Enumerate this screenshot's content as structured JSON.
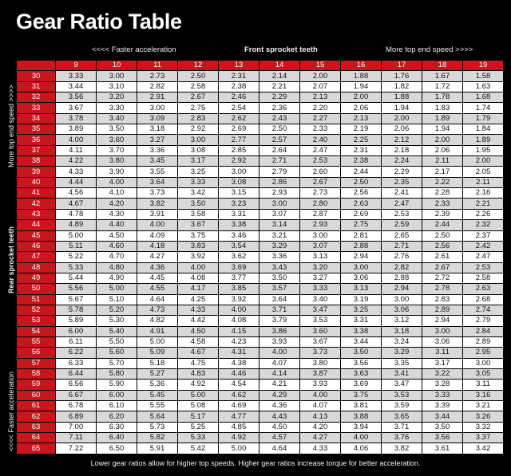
{
  "title": "Gear Ratio Table",
  "top_labels": {
    "left": "<<<< Faster acceleration",
    "center": "Front sprocket teeth",
    "right": "More top end speed >>>>"
  },
  "side_labels": {
    "top": "More top end speed >>>>",
    "center": "Rear sprocket teeth",
    "bottom": "<<<< Faster acceleration"
  },
  "footer": "Lower gear ratios allow for higher top speeds. Higher gear ratios increase torque for better acceleration.",
  "colors": {
    "header_red": "#c8161d",
    "row_gray": "#d9d9d9",
    "row_white": "#ffffff",
    "background": "#000000"
  },
  "table": {
    "front_teeth": [
      "9",
      "10",
      "11",
      "12",
      "13",
      "14",
      "15",
      "16",
      "17",
      "18",
      "19"
    ],
    "rows": [
      {
        "rear": "30",
        "values": [
          "3.33",
          "3.00",
          "2.73",
          "2.50",
          "2.31",
          "2.14",
          "2.00",
          "1.88",
          "1.76",
          "1.67",
          "1.58"
        ]
      },
      {
        "rear": "31",
        "values": [
          "3.44",
          "3.10",
          "2.82",
          "2.58",
          "2.38",
          "2.21",
          "2.07",
          "1.94",
          "1.82",
          "1.72",
          "1.63"
        ]
      },
      {
        "rear": "32",
        "values": [
          "3.56",
          "3.20",
          "2.91",
          "2.67",
          "2.46",
          "2.29",
          "2.13",
          "2.00",
          "1.88",
          "1.78",
          "1.68"
        ]
      },
      {
        "rear": "33",
        "values": [
          "3.67",
          "3.30",
          "3.00",
          "2.75",
          "2.54",
          "2.36",
          "2.20",
          "2.06",
          "1.94",
          "1.83",
          "1.74"
        ]
      },
      {
        "rear": "34",
        "values": [
          "3.78",
          "3.40",
          "3.09",
          "2.83",
          "2.62",
          "2.43",
          "2.27",
          "2.13",
          "2.00",
          "1.89",
          "1.79"
        ]
      },
      {
        "rear": "35",
        "values": [
          "3.89",
          "3.50",
          "3.18",
          "2.92",
          "2.69",
          "2.50",
          "2.33",
          "2.19",
          "2.06",
          "1.94",
          "1.84"
        ]
      },
      {
        "rear": "36",
        "values": [
          "4.00",
          "3.60",
          "3.27",
          "3.00",
          "2.77",
          "2.57",
          "2.40",
          "2.25",
          "2.12",
          "2.00",
          "1.89"
        ]
      },
      {
        "rear": "37",
        "values": [
          "4.11",
          "3.70",
          "3.36",
          "3.08",
          "2.85",
          "2.64",
          "2.47",
          "2.31",
          "2.18",
          "2.06",
          "1.95"
        ]
      },
      {
        "rear": "38",
        "values": [
          "4.22",
          "3.80",
          "3.45",
          "3.17",
          "2.92",
          "2.71",
          "2.53",
          "2.38",
          "2.24",
          "2.11",
          "2.00"
        ]
      },
      {
        "rear": "39",
        "values": [
          "4.33",
          "3.90",
          "3.55",
          "3.25",
          "3.00",
          "2.79",
          "2.60",
          "2.44",
          "2.29",
          "2.17",
          "2.05"
        ]
      },
      {
        "rear": "40",
        "values": [
          "4.44",
          "4.00",
          "3.64",
          "3.33",
          "3.08",
          "2.86",
          "2.67",
          "2.50",
          "2.35",
          "2.22",
          "2.11"
        ]
      },
      {
        "rear": "41",
        "values": [
          "4.56",
          "4.10",
          "3.73",
          "3.42",
          "3.15",
          "2.93",
          "2.73",
          "2.56",
          "2.41",
          "2.28",
          "2.16"
        ]
      },
      {
        "rear": "42",
        "values": [
          "4.67",
          "4.20",
          "3.82",
          "3.50",
          "3.23",
          "3.00",
          "2.80",
          "2.63",
          "2.47",
          "2.33",
          "2.21"
        ]
      },
      {
        "rear": "43",
        "values": [
          "4.78",
          "4.30",
          "3.91",
          "3.58",
          "3.31",
          "3.07",
          "2.87",
          "2.69",
          "2.53",
          "2.39",
          "2.26"
        ]
      },
      {
        "rear": "44",
        "values": [
          "4.89",
          "4.40",
          "4.00",
          "3.67",
          "3.38",
          "3.14",
          "2.93",
          "2.75",
          "2.59",
          "2.44",
          "2.32"
        ]
      },
      {
        "rear": "45",
        "values": [
          "5.00",
          "4.50",
          "4.09",
          "3.75",
          "3.46",
          "3.21",
          "3.00",
          "2.81",
          "2.65",
          "2.50",
          "2.37"
        ]
      },
      {
        "rear": "46",
        "values": [
          "5.11",
          "4.60",
          "4.18",
          "3.83",
          "3.54",
          "3.29",
          "3.07",
          "2.88",
          "2.71",
          "2.56",
          "2.42"
        ]
      },
      {
        "rear": "47",
        "values": [
          "5.22",
          "4.70",
          "4.27",
          "3.92",
          "3.62",
          "3.36",
          "3.13",
          "2.94",
          "2.76",
          "2.61",
          "2.47"
        ]
      },
      {
        "rear": "48",
        "values": [
          "5.33",
          "4.80",
          "4.36",
          "4.00",
          "3.69",
          "3.43",
          "3.20",
          "3.00",
          "2.82",
          "2.67",
          "2.53"
        ]
      },
      {
        "rear": "49",
        "values": [
          "5.44",
          "4.90",
          "4.45",
          "4.08",
          "3.77",
          "3.50",
          "3.27",
          "3.06",
          "2.88",
          "2.72",
          "2.58"
        ]
      },
      {
        "rear": "50",
        "values": [
          "5.56",
          "5.00",
          "4.55",
          "4.17",
          "3.85",
          "3.57",
          "3.33",
          "3.13",
          "2.94",
          "2.78",
          "2.63"
        ]
      },
      {
        "rear": "51",
        "values": [
          "5.67",
          "5.10",
          "4.64",
          "4.25",
          "3.92",
          "3.64",
          "3.40",
          "3.19",
          "3.00",
          "2.83",
          "2.68"
        ]
      },
      {
        "rear": "52",
        "values": [
          "5.78",
          "5.20",
          "4.73",
          "4.33",
          "4.00",
          "3.71",
          "3.47",
          "3.25",
          "3.06",
          "2.89",
          "2.74"
        ]
      },
      {
        "rear": "53",
        "values": [
          "5.89",
          "5.30",
          "4.82",
          "4.42",
          "4.08",
          "3.79",
          "3.53",
          "3.31",
          "3.12",
          "2.94",
          "2.79"
        ]
      },
      {
        "rear": "54",
        "values": [
          "6.00",
          "5.40",
          "4.91",
          "4.50",
          "4.15",
          "3.86",
          "3.60",
          "3.38",
          "3.18",
          "3.00",
          "2.84"
        ]
      },
      {
        "rear": "55",
        "values": [
          "6.11",
          "5.50",
          "5.00",
          "4.58",
          "4.23",
          "3.93",
          "3.67",
          "3.44",
          "3.24",
          "3.06",
          "2.89"
        ]
      },
      {
        "rear": "56",
        "values": [
          "6.22",
          "5.60",
          "5.09",
          "4.67",
          "4.31",
          "4.00",
          "3.73",
          "3.50",
          "3.29",
          "3.11",
          "2.95"
        ]
      },
      {
        "rear": "57",
        "values": [
          "6.33",
          "5.70",
          "5.18",
          "4.75",
          "4.38",
          "4.07",
          "3.80",
          "3.56",
          "3.35",
          "3.17",
          "3.00"
        ]
      },
      {
        "rear": "58",
        "values": [
          "6.44",
          "5.80",
          "5.27",
          "4.83",
          "4.46",
          "4.14",
          "3.87",
          "3.63",
          "3.41",
          "3.22",
          "3.05"
        ]
      },
      {
        "rear": "59",
        "values": [
          "6.56",
          "5.90",
          "5.36",
          "4.92",
          "4.54",
          "4.21",
          "3.93",
          "3.69",
          "3.47",
          "3.28",
          "3.11"
        ]
      },
      {
        "rear": "60",
        "values": [
          "6.67",
          "6.00",
          "5.45",
          "5.00",
          "4.62",
          "4.29",
          "4.00",
          "3.75",
          "3.53",
          "3.33",
          "3.16"
        ]
      },
      {
        "rear": "61",
        "values": [
          "6.78",
          "6.10",
          "5.55",
          "5.08",
          "4.69",
          "4.36",
          "4.07",
          "3.81",
          "3.59",
          "3.39",
          "3.21"
        ]
      },
      {
        "rear": "62",
        "values": [
          "6.89",
          "6.20",
          "5.64",
          "5.17",
          "4.77",
          "4.43",
          "4.13",
          "3.88",
          "3.65",
          "3.44",
          "3.26"
        ]
      },
      {
        "rear": "63",
        "values": [
          "7.00",
          "6.30",
          "5.73",
          "5.25",
          "4.85",
          "4.50",
          "4.20",
          "3.94",
          "3.71",
          "3.50",
          "3.32"
        ]
      },
      {
        "rear": "64",
        "values": [
          "7.11",
          "6.40",
          "5.82",
          "5.33",
          "4.92",
          "4.57",
          "4.27",
          "4.00",
          "3.76",
          "3.56",
          "3.37"
        ]
      },
      {
        "rear": "65",
        "values": [
          "7.22",
          "6.50",
          "5.91",
          "5.42",
          "5.00",
          "4.64",
          "4.33",
          "4.06",
          "3.82",
          "3.61",
          "3.42"
        ]
      }
    ]
  }
}
